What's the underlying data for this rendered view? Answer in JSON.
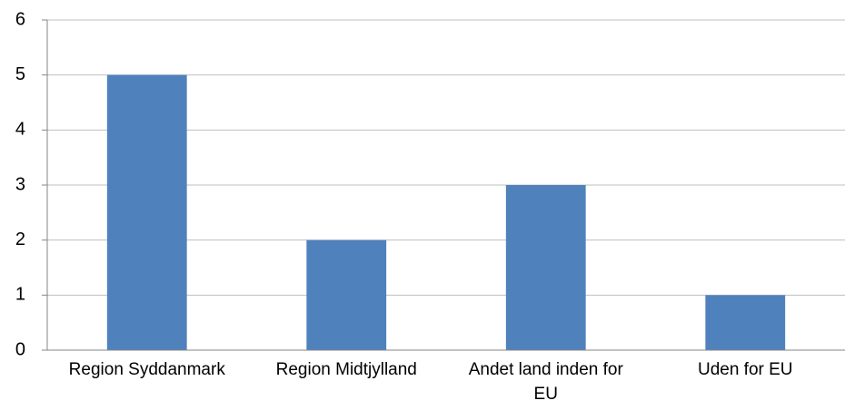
{
  "chart_data": {
    "type": "bar",
    "categories": [
      "Region Syddanmark",
      "Region Midtjylland",
      "Andet land inden for EU",
      "Uden for EU"
    ],
    "values": [
      5,
      2,
      3,
      1
    ],
    "color": "#4f81bd",
    "ylim": [
      0,
      6
    ],
    "yticks": [
      0,
      1,
      2,
      3,
      4,
      5,
      6
    ],
    "grid": true
  }
}
